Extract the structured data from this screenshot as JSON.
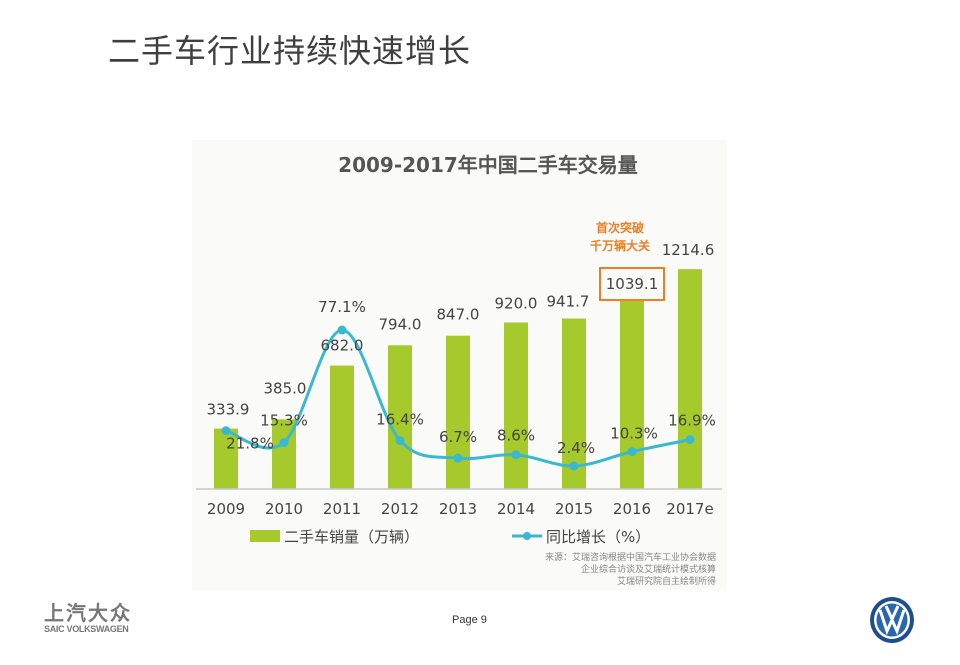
{
  "slide": {
    "title": "二手车行业持续快速增长",
    "page_label": "Page 9",
    "logo_saic_cn": "上汽大众",
    "logo_saic_en": "SAIC VOLKSWAGEN",
    "logo_vw": "VW"
  },
  "chart_data": {
    "type": "bar+line",
    "title": "2009-2017年中国二手车交易量",
    "categories": [
      "2009",
      "2010",
      "2011",
      "2012",
      "2013",
      "2014",
      "2015",
      "2016",
      "2017e"
    ],
    "series": [
      {
        "name": "二手车销量（万辆）",
        "type": "bar",
        "color": "#a6c92c",
        "values": [
          333.9,
          385.0,
          682.0,
          794.0,
          847.0,
          920.0,
          941.7,
          1039.1,
          1214.6
        ],
        "labels": [
          "333.9",
          "385.0",
          "682.0",
          "794.0",
          "847.0",
          "920.0",
          "941.7",
          "1039.1",
          "1214.6"
        ]
      },
      {
        "name": "同比增长（%）",
        "type": "line",
        "color": "#3bb8cf",
        "values": [
          21.8,
          15.3,
          77.1,
          16.4,
          6.7,
          8.6,
          2.4,
          10.3,
          16.9
        ],
        "labels": [
          "21.8%",
          "15.3%",
          "77.1%",
          "16.4%",
          "6.7%",
          "8.6%",
          "2.4%",
          "10.3%",
          "16.9%"
        ]
      }
    ],
    "annotation": {
      "line1": "首次突破",
      "line2": "千万辆大关",
      "color": "#f07d22",
      "target": "2016"
    },
    "source": [
      "来源：艾瑞咨询根据中国汽车工业协会数据",
      "企业综合访谈及艾瑞统计模式核算",
      "艾瑞研究院自主绘制所得"
    ],
    "legend_placement": "bottom",
    "grid": false
  }
}
